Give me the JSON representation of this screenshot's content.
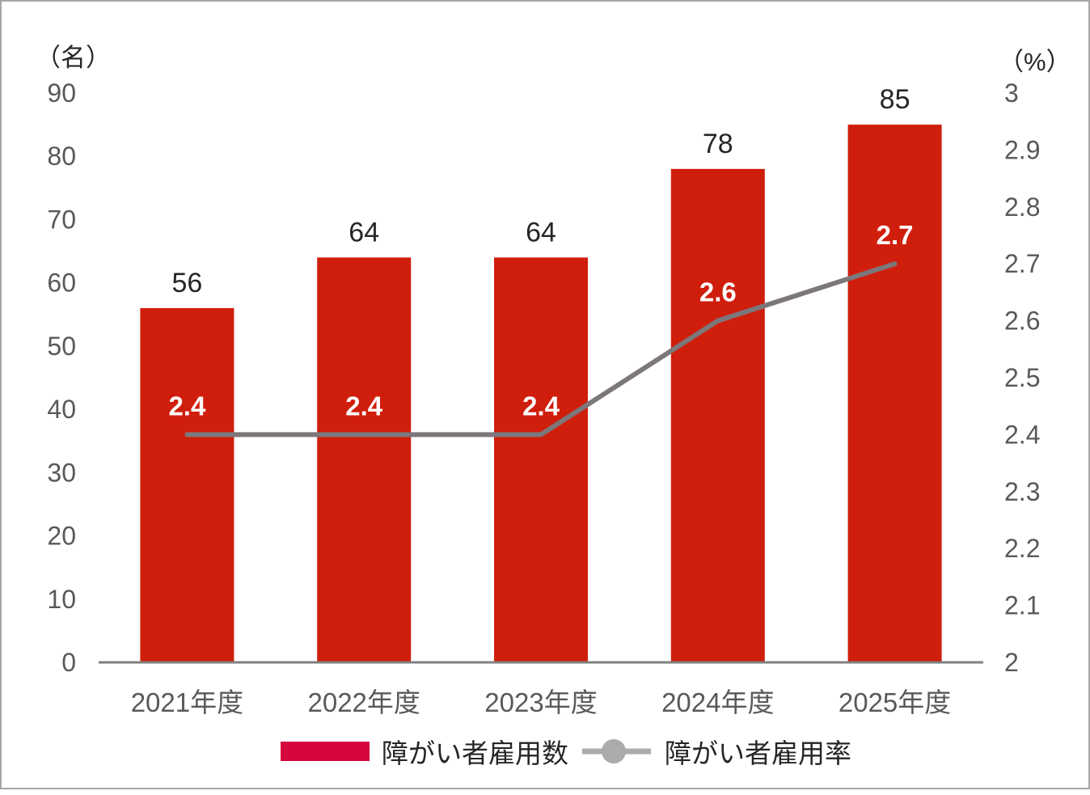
{
  "chart_data": {
    "type": "bar+line combo",
    "categories": [
      "2021年度",
      "2022年度",
      "2023年度",
      "2024年度",
      "2025年度"
    ],
    "series": [
      {
        "name": "障がい者雇用数",
        "type": "bar",
        "axis": "left",
        "values": [
          56,
          64,
          64,
          78,
          85
        ],
        "value_labels": [
          "56",
          "64",
          "64",
          "78",
          "85"
        ]
      },
      {
        "name": "障がい者雇用率",
        "type": "line",
        "axis": "right",
        "values": [
          2.4,
          2.4,
          2.4,
          2.6,
          2.7
        ],
        "value_labels": [
          "2.4",
          "2.4",
          "2.4",
          "2.6",
          "2.7"
        ]
      }
    ],
    "left_axis": {
      "unit_label": "（名）",
      "min": 0,
      "max": 90,
      "ticks": [
        "0",
        "10",
        "20",
        "30",
        "40",
        "50",
        "60",
        "70",
        "80",
        "90"
      ],
      "tick_values": [
        0,
        10,
        20,
        30,
        40,
        50,
        60,
        70,
        80,
        90
      ]
    },
    "right_axis": {
      "unit_label": "（%）",
      "min": 2,
      "max": 3,
      "ticks": [
        "2",
        "2.1",
        "2.2",
        "2.3",
        "2.4",
        "2.5",
        "2.6",
        "2.7",
        "2.8",
        "2.9",
        "3"
      ],
      "tick_values": [
        2,
        2.1,
        2.2,
        2.3,
        2.4,
        2.5,
        2.6,
        2.7,
        2.8,
        2.9,
        3
      ]
    },
    "grid": false,
    "legend_position": "bottom",
    "legend": [
      {
        "label": "障がい者雇用数",
        "marker": "bar-swatch"
      },
      {
        "label": "障がい者雇用率",
        "marker": "line-with-dot"
      }
    ]
  },
  "colors": {
    "bar": "#d01e0c",
    "bar_value_label": "#262626",
    "line": "#7c777b",
    "line_value_label": "#ffffff",
    "axis_line": "#808080",
    "tick_text": "#595959",
    "unit_text": "#262626",
    "legend_text": "#262626",
    "legend_bar_swatch": "#d5073d",
    "legend_line": "#ababab",
    "frame_border": "#a6a6a6",
    "background": "#ffffff"
  }
}
